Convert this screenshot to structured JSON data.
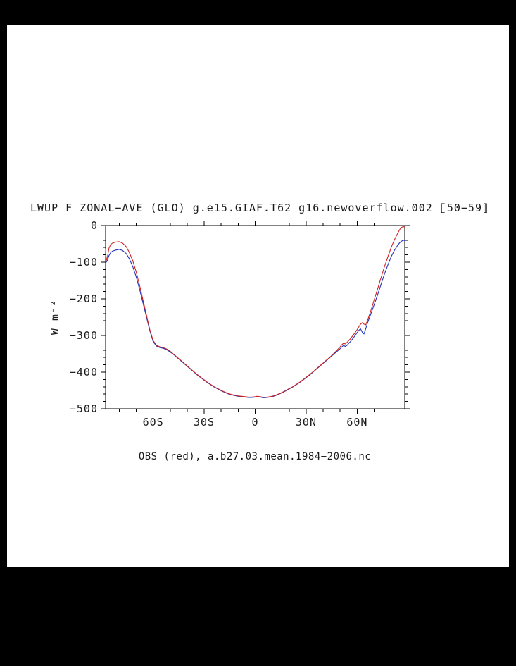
{
  "page": {
    "title": "LWUP_F ZONAL−AVE (GLO) g.e15.GIAF.T62_g16.newoverflow.002 ⟦50−59⟧",
    "ylabel": "W m⁻²",
    "caption": "OBS (red), a.b27.03.mean.1984−2006.nc",
    "background": "#000000",
    "page_color": "#ffffff",
    "text_color": "#1a1a1a"
  },
  "chart_data": {
    "type": "line",
    "title": "LWUP_F ZONAL−AVE (GLO) g.e15.GIAF.T62_g16.newoverflow.002 ⟦50−59⟧",
    "ylabel": "W m⁻²",
    "xlabel": "",
    "caption": "OBS (red), a.b27.03.mean.1984−2006.nc",
    "grid": false,
    "legend_position": "none",
    "xlim": [
      -88,
      88
    ],
    "ylim": [
      -500,
      0
    ],
    "xticks": {
      "values": [
        -60,
        -30,
        0,
        30,
        60
      ],
      "labels": [
        "60S",
        "30S",
        "0",
        "30N",
        "60N"
      ],
      "minor_step": 10
    },
    "yticks": {
      "values": [
        0,
        -100,
        -200,
        -300,
        -400,
        -500
      ],
      "labels": [
        "0",
        "−100",
        "−200",
        "−300",
        "−400",
        "−500"
      ],
      "minor_step": 20
    },
    "axis_color": "#000000",
    "series": [
      {
        "name": "g.e15.GIAF.T62_g16.newoverflow.002",
        "color": "#2233bb",
        "points": [
          [
            -88,
            -80
          ],
          [
            -87.6,
            -100
          ],
          [
            -87,
            -96
          ],
          [
            -86,
            -82
          ],
          [
            -85,
            -74
          ],
          [
            -84,
            -70
          ],
          [
            -82,
            -67
          ],
          [
            -80,
            -65
          ],
          [
            -78,
            -68
          ],
          [
            -76,
            -76
          ],
          [
            -75,
            -83
          ],
          [
            -74,
            -91
          ],
          [
            -72,
            -112
          ],
          [
            -70,
            -140
          ],
          [
            -68,
            -174
          ],
          [
            -66,
            -211
          ],
          [
            -64,
            -249
          ],
          [
            -62,
            -287
          ],
          [
            -60,
            -317
          ],
          [
            -58,
            -329
          ],
          [
            -56,
            -333
          ],
          [
            -54,
            -335
          ],
          [
            -52,
            -339
          ],
          [
            -50,
            -345
          ],
          [
            -48,
            -352
          ],
          [
            -46,
            -360
          ],
          [
            -44,
            -368
          ],
          [
            -42,
            -376
          ],
          [
            -40,
            -384
          ],
          [
            -38,
            -392
          ],
          [
            -36,
            -400
          ],
          [
            -34,
            -408
          ],
          [
            -32,
            -415
          ],
          [
            -30,
            -422
          ],
          [
            -28,
            -429
          ],
          [
            -26,
            -435
          ],
          [
            -24,
            -441
          ],
          [
            -22,
            -446
          ],
          [
            -20,
            -451
          ],
          [
            -18,
            -455
          ],
          [
            -16,
            -459
          ],
          [
            -14,
            -462
          ],
          [
            -12,
            -464
          ],
          [
            -10,
            -466
          ],
          [
            -8,
            -467
          ],
          [
            -6,
            -468
          ],
          [
            -4,
            -469
          ],
          [
            -2,
            -469
          ],
          [
            0,
            -468
          ],
          [
            1,
            -467
          ],
          [
            3,
            -468
          ],
          [
            5,
            -470
          ],
          [
            7,
            -469
          ],
          [
            10,
            -467
          ],
          [
            12,
            -464
          ],
          [
            14,
            -460
          ],
          [
            16,
            -456
          ],
          [
            18,
            -451
          ],
          [
            20,
            -446
          ],
          [
            22,
            -441
          ],
          [
            24,
            -435
          ],
          [
            26,
            -429
          ],
          [
            28,
            -422
          ],
          [
            30,
            -415
          ],
          [
            32,
            -408
          ],
          [
            34,
            -400
          ],
          [
            36,
            -392
          ],
          [
            38,
            -384
          ],
          [
            40,
            -376
          ],
          [
            42,
            -368
          ],
          [
            44,
            -360
          ],
          [
            46,
            -352
          ],
          [
            48,
            -344
          ],
          [
            50,
            -336
          ],
          [
            51,
            -331
          ],
          [
            52,
            -327
          ],
          [
            53,
            -330
          ],
          [
            54,
            -327
          ],
          [
            56,
            -317
          ],
          [
            58,
            -305
          ],
          [
            60,
            -292
          ],
          [
            61,
            -286
          ],
          [
            62,
            -282
          ],
          [
            63,
            -291
          ],
          [
            64,
            -296
          ],
          [
            65,
            -282
          ],
          [
            66,
            -267
          ],
          [
            68,
            -242
          ],
          [
            70,
            -216
          ],
          [
            72,
            -189
          ],
          [
            74,
            -161
          ],
          [
            76,
            -133
          ],
          [
            78,
            -108
          ],
          [
            80,
            -85
          ],
          [
            82,
            -67
          ],
          [
            84,
            -53
          ],
          [
            85,
            -47
          ],
          [
            86,
            -43
          ],
          [
            87,
            -40
          ],
          [
            88,
            -41
          ]
        ]
      },
      {
        "name": "OBS",
        "color": "#cc2222",
        "points": [
          [
            -88,
            -65
          ],
          [
            -87.6,
            -95
          ],
          [
            -87,
            -88
          ],
          [
            -86,
            -62
          ],
          [
            -85,
            -52
          ],
          [
            -84,
            -48
          ],
          [
            -82,
            -45
          ],
          [
            -80,
            -44
          ],
          [
            -78,
            -48
          ],
          [
            -76,
            -57
          ],
          [
            -75,
            -65
          ],
          [
            -74,
            -74
          ],
          [
            -72,
            -96
          ],
          [
            -70,
            -127
          ],
          [
            -68,
            -163
          ],
          [
            -66,
            -203
          ],
          [
            -64,
            -244
          ],
          [
            -62,
            -284
          ],
          [
            -60,
            -314
          ],
          [
            -58,
            -327
          ],
          [
            -56,
            -331
          ],
          [
            -54,
            -333
          ],
          [
            -52,
            -337
          ],
          [
            -50,
            -343
          ],
          [
            -48,
            -351
          ],
          [
            -46,
            -359
          ],
          [
            -44,
            -367
          ],
          [
            -42,
            -375
          ],
          [
            -40,
            -383
          ],
          [
            -38,
            -391
          ],
          [
            -36,
            -399
          ],
          [
            -34,
            -407
          ],
          [
            -32,
            -414
          ],
          [
            -30,
            -421
          ],
          [
            -28,
            -428
          ],
          [
            -26,
            -434
          ],
          [
            -24,
            -440
          ],
          [
            -22,
            -445
          ],
          [
            -20,
            -450
          ],
          [
            -18,
            -454
          ],
          [
            -16,
            -458
          ],
          [
            -14,
            -461
          ],
          [
            -12,
            -463
          ],
          [
            -10,
            -465
          ],
          [
            -8,
            -466
          ],
          [
            -6,
            -467
          ],
          [
            -4,
            -468
          ],
          [
            -2,
            -468
          ],
          [
            0,
            -467
          ],
          [
            1,
            -466
          ],
          [
            3,
            -467
          ],
          [
            5,
            -469
          ],
          [
            7,
            -468
          ],
          [
            10,
            -466
          ],
          [
            12,
            -463
          ],
          [
            14,
            -459
          ],
          [
            16,
            -455
          ],
          [
            18,
            -450
          ],
          [
            20,
            -445
          ],
          [
            22,
            -440
          ],
          [
            24,
            -434
          ],
          [
            26,
            -428
          ],
          [
            28,
            -421
          ],
          [
            30,
            -414
          ],
          [
            32,
            -407
          ],
          [
            34,
            -399
          ],
          [
            36,
            -391
          ],
          [
            38,
            -383
          ],
          [
            40,
            -375
          ],
          [
            42,
            -367
          ],
          [
            44,
            -359
          ],
          [
            46,
            -350
          ],
          [
            48,
            -341
          ],
          [
            50,
            -331
          ],
          [
            51,
            -325
          ],
          [
            52,
            -321
          ],
          [
            53,
            -323
          ],
          [
            54,
            -319
          ],
          [
            56,
            -309
          ],
          [
            58,
            -297
          ],
          [
            60,
            -284
          ],
          [
            61,
            -276
          ],
          [
            62,
            -269
          ],
          [
            63,
            -265
          ],
          [
            64,
            -269
          ],
          [
            65,
            -271
          ],
          [
            66,
            -260
          ],
          [
            68,
            -233
          ],
          [
            70,
            -203
          ],
          [
            72,
            -173
          ],
          [
            74,
            -143
          ],
          [
            76,
            -113
          ],
          [
            78,
            -86
          ],
          [
            80,
            -60
          ],
          [
            82,
            -38
          ],
          [
            84,
            -20
          ],
          [
            85,
            -11
          ],
          [
            86,
            -5
          ],
          [
            87,
            -3
          ],
          [
            88,
            -4
          ]
        ]
      }
    ]
  }
}
